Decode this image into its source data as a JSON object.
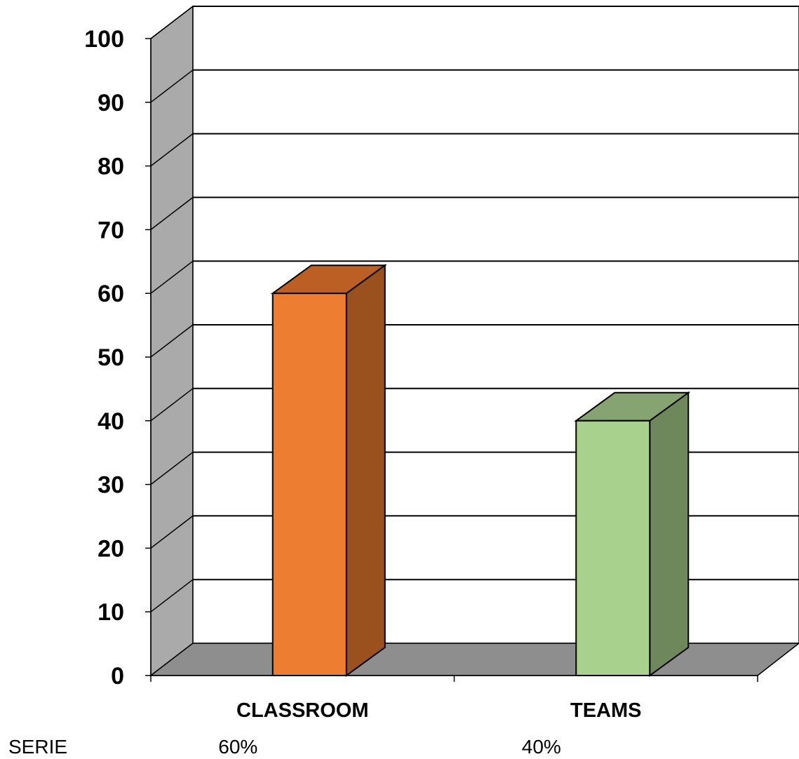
{
  "chart_data": {
    "type": "bar",
    "style": "3d-column",
    "categories": [
      "CLASSROOM",
      "TEAMS"
    ],
    "series": [
      {
        "name": "SERIE",
        "values": [
          60,
          40
        ],
        "value_labels": [
          "60%",
          "40%"
        ]
      }
    ],
    "ylim": [
      0,
      100
    ],
    "yticks": [
      0,
      10,
      20,
      30,
      40,
      50,
      60,
      70,
      80,
      90,
      100
    ],
    "ytick_labels": [
      "0",
      "10",
      "20",
      "30",
      "40",
      "50",
      "60",
      "70",
      "80",
      "90",
      "100"
    ],
    "grid": true,
    "data_table": true,
    "colors": {
      "bars": [
        "#ED7D31",
        "#A9D18E"
      ],
      "bar_sides": [
        "#9A511D",
        "#6E875B"
      ],
      "bar_tops": [
        "#BB5F25",
        "#86A372"
      ],
      "wall_side": "#AAAAAA",
      "floor": "#8E8E8E",
      "gridline": "#000000"
    }
  }
}
